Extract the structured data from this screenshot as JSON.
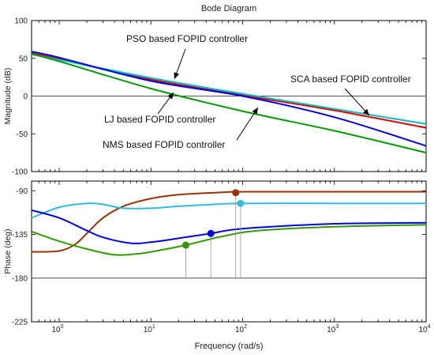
{
  "chart_data": {
    "type": "line",
    "title": "Bode Diagram",
    "xlabel": "Frequency  (rad/s)",
    "xscale": "log",
    "xlim": [
      0.5,
      10000
    ],
    "xticks": [
      {
        "base": "10",
        "exp": "0"
      },
      {
        "base": "10",
        "exp": "1"
      },
      {
        "base": "10",
        "exp": "2"
      },
      {
        "base": "10",
        "exp": "3"
      },
      {
        "base": "10",
        "exp": "4"
      }
    ],
    "magnitude": {
      "ylabel": "Magnitude (dB)",
      "ylim": [
        -100,
        100
      ],
      "yticks": [
        "100",
        "50",
        "0",
        "-50",
        "-100"
      ],
      "series": [
        {
          "key": "pso",
          "color": "#e00000",
          "x": [
            0.5,
            1,
            10,
            100,
            1000,
            10000
          ],
          "y": [
            57,
            49,
            22,
            1,
            -19,
            -42
          ]
        },
        {
          "key": "sca",
          "color": "#00c0c0",
          "x": [
            0.5,
            1,
            10,
            100,
            1000,
            10000
          ],
          "y": [
            55,
            48,
            24,
            3,
            -17,
            -37
          ]
        },
        {
          "key": "lj",
          "color": "#0000dd",
          "x": [
            0.5,
            1,
            10,
            100,
            1000,
            10000
          ],
          "y": [
            59,
            51,
            20,
            0,
            -28,
            -66
          ]
        },
        {
          "key": "nms",
          "color": "#009900",
          "x": [
            0.5,
            1,
            10,
            100,
            1000,
            10000
          ],
          "y": [
            56,
            46,
            10,
            -20,
            -46,
            -75
          ]
        }
      ],
      "annotations": [
        {
          "text": "PSO based FOPID controller",
          "x": 17,
          "y": 45
        },
        {
          "text": "SCA based FOPID controller",
          "x": 2900,
          "y": -56
        },
        {
          "text": "LJ based FOPID controller",
          "x": 14,
          "y": 7
        },
        {
          "text": "NMS based FOPID controller",
          "x": 125,
          "y": -13
        }
      ]
    },
    "phase": {
      "ylabel": "Phase (deg)",
      "ylim": [
        -225,
        -80
      ],
      "yticks": [
        "-90",
        "-135",
        "-180",
        "-225"
      ],
      "series": [
        {
          "key": "pso",
          "color": "#993300",
          "x": [
            0.5,
            1,
            1.5,
            2,
            3,
            5,
            10,
            20,
            50,
            100,
            1000,
            10000
          ],
          "y": [
            -153,
            -152,
            -145,
            -134,
            -118,
            -106,
            -98,
            -94,
            -92,
            -91,
            -91,
            -91
          ]
        },
        {
          "key": "sca",
          "color": "#33bbdd",
          "x": [
            0.5,
            1,
            2,
            3,
            5,
            10,
            20,
            50,
            100,
            1000,
            10000
          ],
          "y": [
            -118,
            -107,
            -103,
            -104,
            -108,
            -108,
            -106,
            -104,
            -103,
            -103,
            -103
          ]
        },
        {
          "key": "lj",
          "color": "#0000dd",
          "x": [
            0.5,
            1,
            2,
            3,
            6,
            10,
            20,
            45,
            100,
            1000,
            10000
          ],
          "y": [
            -110,
            -118,
            -131,
            -138,
            -144,
            -143,
            -139,
            -134,
            -129,
            -124,
            -123
          ]
        },
        {
          "key": "nms",
          "color": "#339900",
          "x": [
            0.5,
            1,
            2,
            4,
            7,
            10,
            24,
            60,
            150,
            1000,
            10000
          ],
          "y": [
            -132,
            -142,
            -150,
            -156,
            -155,
            -153,
            -146,
            -137,
            -131,
            -127,
            -125
          ]
        }
      ],
      "markers": [
        {
          "key": "pso",
          "color": "#993300",
          "x": 84,
          "y": -92
        },
        {
          "key": "sca",
          "color": "#33bbdd",
          "x": 95,
          "y": -103
        },
        {
          "key": "lj",
          "color": "#0000dd",
          "x": 45,
          "y": -134
        },
        {
          "key": "nms",
          "color": "#339900",
          "x": 24,
          "y": -146
        }
      ]
    }
  }
}
